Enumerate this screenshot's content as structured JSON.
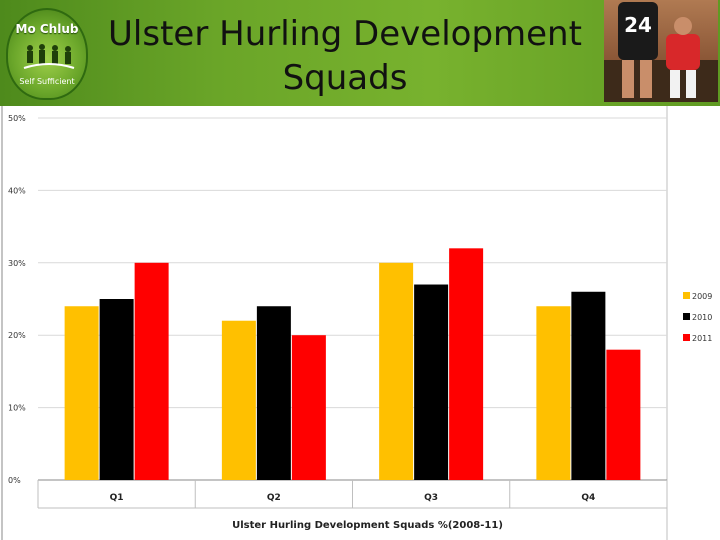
{
  "slide": {
    "title_line1": "Ulster Hurling Development",
    "title_line2": "Squads"
  },
  "logo": {
    "top_text": "Mo Chlub",
    "bottom_text": "Self Sufficient"
  },
  "photo": {
    "jersey_number": "24"
  },
  "colors": {
    "header_green": "#6aa528",
    "series_2009": "#ffc000",
    "series_2010": "#000000",
    "series_2011": "#ff0000",
    "gridline": "#d9d9d9"
  },
  "chart_data": {
    "type": "bar",
    "title": "",
    "xlabel": "Ulster Hurling Development Squads %(2008-11)",
    "ylabel": "",
    "categories": [
      "Q1",
      "Q2",
      "Q3",
      "Q4"
    ],
    "series": [
      {
        "name": "2009",
        "color": "#ffc000",
        "values": [
          24,
          22,
          30,
          24
        ]
      },
      {
        "name": "2010",
        "color": "#000000",
        "values": [
          25,
          24,
          27,
          26
        ]
      },
      {
        "name": "2011",
        "color": "#ff0000",
        "values": [
          30,
          20,
          32,
          18
        ]
      }
    ],
    "ylim": [
      0,
      50
    ],
    "yticks": [
      0,
      10,
      20,
      30,
      40,
      50
    ],
    "ytick_labels": [
      "0%",
      "10%",
      "20%",
      "30%",
      "40%",
      "50%"
    ],
    "grid": true,
    "legend_position": "right"
  }
}
